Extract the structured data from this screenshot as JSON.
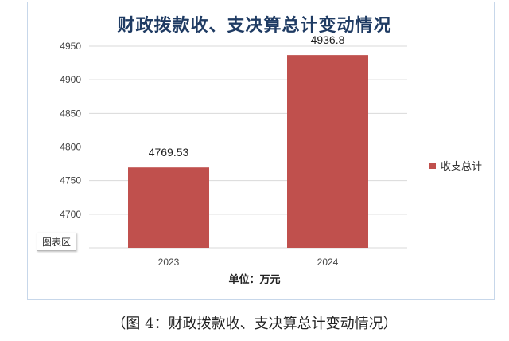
{
  "chart_data": {
    "type": "bar",
    "title": "财政拨款收、支决算总计变动情况",
    "categories": [
      "2023",
      "2024"
    ],
    "series": [
      {
        "name": "收支总计",
        "values": [
          4769.53,
          4936.8
        ],
        "color": "#c0504d"
      }
    ],
    "data_labels": [
      "4769.53",
      "4936.8"
    ],
    "ylim": [
      4650,
      4950
    ],
    "yticks": [
      4700,
      4750,
      4800,
      4850,
      4900,
      4950
    ],
    "ytick_labels": [
      "4700",
      "4750",
      "4800",
      "4850",
      "4900",
      "4950"
    ],
    "ylabel": "单位：万元",
    "grid": true,
    "legend_position": "right",
    "plot_area_label": "图表区"
  },
  "caption": "（图 4：财政拨款收、支决算总计变动情况）",
  "colors": {
    "bar": "#c0504d",
    "grid": "#d9d9d9",
    "title": "#1f3b63",
    "frame_border": "#c7d7ea"
  }
}
